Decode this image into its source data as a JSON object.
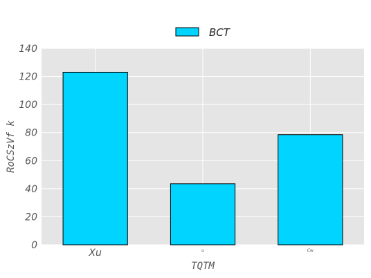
{
  "chart_data": {
    "type": "bar",
    "categories": [
      "Xu",
      "u",
      "Cw"
    ],
    "series": [
      {
        "name": "BCT",
        "values": [
          123,
          43.5,
          78.5
        ]
      }
    ],
    "xlabel": "TQTM",
    "ylabel": "RoCSzVf k",
    "ylim": [
      0,
      140
    ],
    "yticks": [
      0,
      20,
      40,
      60,
      80,
      100,
      120,
      140
    ],
    "grid": true,
    "legend_position": "top-center",
    "colors": {
      "bar_fill": "#00d4ff",
      "bar_edge": "#000000",
      "plot_background": "#e5e5e5",
      "grid": "#ffffff"
    }
  }
}
